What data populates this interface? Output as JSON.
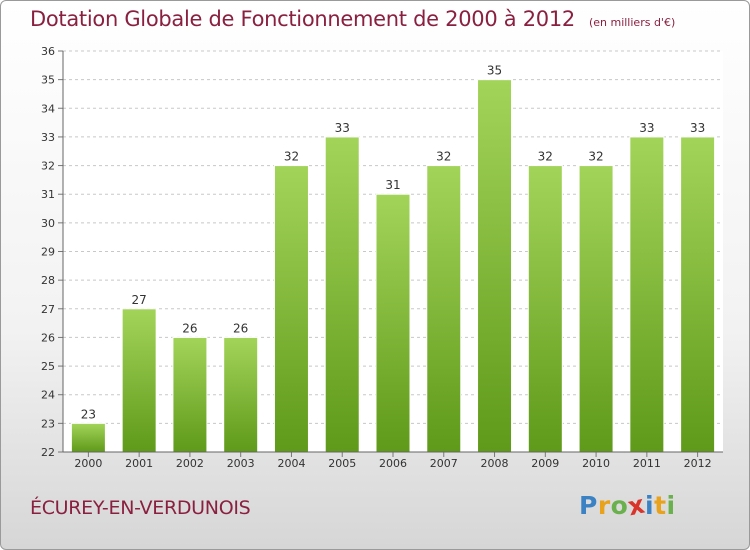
{
  "header": {
    "title": "Dotation Globale de Fonctionnement de 2000 à 2012",
    "subtitle": "(en milliers d'€)"
  },
  "footer": {
    "commune": "ÉCUREY-EN-VERDUNOIS",
    "logo_letters": [
      "P",
      "r",
      "o",
      "x",
      "i",
      "t",
      "i"
    ],
    "logo_colors": [
      "#3b82c4",
      "#e8a21c",
      "#6ab04c",
      "#d9342b",
      "#3b82c4",
      "#e8a21c",
      "#6ab04c"
    ]
  },
  "colors": {
    "bar_top": "#a3d45a",
    "bar_bottom": "#5f9a1a",
    "title": "#8a2040",
    "grid": "#c8c8c8"
  },
  "chart_data": {
    "type": "bar",
    "categories": [
      "2000",
      "2001",
      "2002",
      "2003",
      "2004",
      "2005",
      "2006",
      "2007",
      "2008",
      "2009",
      "2010",
      "2011",
      "2012"
    ],
    "values": [
      23,
      27,
      26,
      26,
      32,
      33,
      31,
      32,
      35,
      32,
      32,
      33,
      33
    ],
    "ylim": [
      22,
      36
    ],
    "yticks": [
      22,
      23,
      24,
      25,
      26,
      27,
      28,
      29,
      30,
      31,
      32,
      33,
      34,
      35,
      36
    ],
    "grid": true,
    "data_labels": true
  }
}
